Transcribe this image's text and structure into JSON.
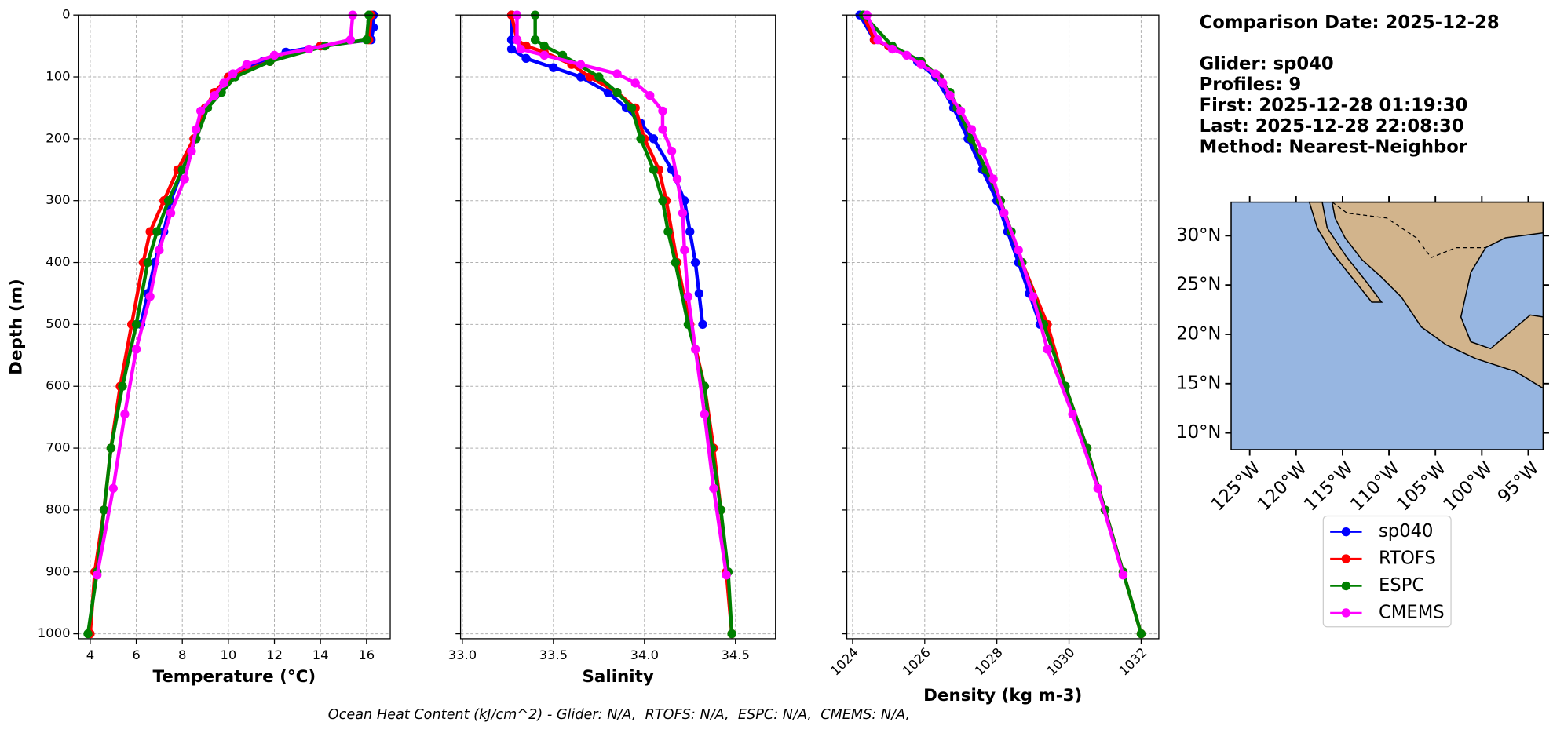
{
  "chart_data": [
    {
      "type": "line",
      "xlabel": "Temperature (°C)",
      "ylabel": "Depth (m)",
      "xlim": [
        3.48,
        17.03
      ],
      "xticks": [
        4,
        6,
        8,
        10,
        12,
        14,
        16
      ],
      "ylim": [
        1008,
        0
      ],
      "yticks": [
        0,
        100,
        200,
        300,
        400,
        500,
        600,
        700,
        800,
        900,
        1000
      ],
      "ytick_labels": true,
      "grid": true,
      "series": [
        {
          "name": "sp040",
          "color": "#0000ff",
          "depth": [
            0,
            20,
            40,
            50,
            60,
            75,
            100,
            125,
            150,
            200,
            250,
            300,
            350,
            400,
            450,
            500
          ],
          "values": [
            16.3,
            16.3,
            16.2,
            14,
            12.5,
            11.5,
            10,
            9.5,
            9,
            8.6,
            8,
            7.5,
            7.2,
            6.8,
            6.5,
            6.2
          ]
        },
        {
          "name": "RTOFS",
          "color": "#ff0000",
          "depth": [
            0,
            40,
            50,
            75,
            100,
            125,
            150,
            200,
            250,
            300,
            350,
            400,
            500,
            600,
            700,
            800,
            900,
            1000
          ],
          "values": [
            16.2,
            16.1,
            14,
            11.8,
            10,
            9.4,
            9,
            8.5,
            7.8,
            7.2,
            6.6,
            6.3,
            5.8,
            5.3,
            4.9,
            4.6,
            4.2,
            4
          ]
        },
        {
          "name": "ESPC",
          "color": "#008000",
          "depth": [
            0,
            40,
            50,
            75,
            100,
            125,
            150,
            200,
            250,
            300,
            350,
            400,
            500,
            600,
            700,
            800,
            900,
            1000
          ],
          "values": [
            16.1,
            16,
            14.2,
            11.8,
            10.3,
            9.7,
            9.1,
            8.6,
            8,
            7.4,
            6.9,
            6.5,
            6,
            5.4,
            4.9,
            4.6,
            4.3,
            3.9
          ]
        },
        {
          "name": "CMEMS",
          "color": "#ff00ff",
          "depth": [
            0,
            40,
            55,
            65,
            80,
            95,
            110,
            130,
            155,
            185,
            220,
            265,
            320,
            380,
            455,
            540,
            645,
            765,
            905
          ],
          "values": [
            15.4,
            15.3,
            13.5,
            12,
            10.8,
            10.2,
            9.8,
            9.4,
            8.8,
            8.6,
            8.4,
            8.1,
            7.5,
            7,
            6.6,
            6,
            5.5,
            5,
            4.3
          ]
        }
      ]
    },
    {
      "type": "line",
      "xlabel": "Salinity",
      "xlim": [
        32.99,
        34.72
      ],
      "xticks": [
        {
          "value": 33,
          "label": "33.0"
        },
        33.5,
        {
          "value": 34,
          "label": "34.0"
        },
        34.5
      ],
      "ylim": [
        1008,
        0
      ],
      "yticks": [
        0,
        100,
        200,
        300,
        400,
        500,
        600,
        700,
        800,
        900,
        1000
      ],
      "ytick_labels": false,
      "grid": true,
      "series": [
        {
          "name": "sp040",
          "color": "#0000ff",
          "depth": [
            0,
            40,
            55,
            70,
            85,
            100,
            125,
            150,
            175,
            200,
            250,
            300,
            350,
            400,
            450,
            500
          ],
          "values": [
            33.27,
            33.27,
            33.27,
            33.35,
            33.5,
            33.65,
            33.8,
            33.9,
            33.98,
            34.05,
            34.15,
            34.22,
            34.25,
            34.28,
            34.3,
            34.32
          ]
        },
        {
          "name": "RTOFS",
          "color": "#ff0000",
          "depth": [
            0,
            40,
            50,
            60,
            80,
            100,
            125,
            150,
            200,
            250,
            300,
            400,
            500,
            600,
            700,
            800,
            900,
            1000
          ],
          "values": [
            33.27,
            33.3,
            33.35,
            33.45,
            33.6,
            33.7,
            33.85,
            33.95,
            34,
            34.08,
            34.12,
            34.18,
            34.25,
            34.33,
            34.38,
            34.42,
            34.45,
            34.48
          ]
        },
        {
          "name": "ESPC",
          "color": "#008000",
          "depth": [
            0,
            40,
            50,
            65,
            100,
            125,
            150,
            200,
            250,
            300,
            350,
            400,
            500,
            600,
            700,
            800,
            900,
            1000
          ],
          "values": [
            33.4,
            33.4,
            33.45,
            33.55,
            33.75,
            33.85,
            33.93,
            33.98,
            34.05,
            34.1,
            34.13,
            34.17,
            34.24,
            34.33,
            34.37,
            34.42,
            34.46,
            34.48
          ]
        },
        {
          "name": "CMEMS",
          "color": "#ff00ff",
          "depth": [
            0,
            40,
            55,
            65,
            80,
            95,
            110,
            130,
            155,
            185,
            220,
            265,
            320,
            380,
            455,
            540,
            645,
            765,
            905
          ],
          "values": [
            33.3,
            33.3,
            33.32,
            33.45,
            33.65,
            33.85,
            33.95,
            34.03,
            34.1,
            34.1,
            34.15,
            34.18,
            34.21,
            34.22,
            34.24,
            34.28,
            34.33,
            34.38,
            34.45
          ]
        }
      ]
    },
    {
      "type": "line",
      "xlabel": "Density (kg m-3)",
      "xlim": [
        1023.84,
        1032.49
      ],
      "xticks": [
        1024,
        1026,
        1028,
        1030,
        1032
      ],
      "xtick_rotation": 45,
      "ylim": [
        1008,
        0
      ],
      "yticks": [
        0,
        100,
        200,
        300,
        400,
        500,
        600,
        700,
        800,
        900,
        1000
      ],
      "ytick_labels": false,
      "grid": true,
      "series": [
        {
          "name": "sp040",
          "color": "#0000ff",
          "depth": [
            0,
            40,
            50,
            75,
            100,
            150,
            200,
            250,
            300,
            350,
            400,
            450,
            500
          ],
          "values": [
            1024.2,
            1024.6,
            1025,
            1025.8,
            1026.3,
            1026.8,
            1027.2,
            1027.6,
            1028,
            1028.3,
            1028.6,
            1028.9,
            1029.2
          ]
        },
        {
          "name": "RTOFS",
          "color": "#ff0000",
          "depth": [
            0,
            40,
            50,
            75,
            100,
            150,
            200,
            250,
            300,
            400,
            500,
            600,
            700,
            800,
            900,
            1000
          ],
          "values": [
            1024.3,
            1024.6,
            1025,
            1025.9,
            1026.4,
            1026.9,
            1027.3,
            1027.7,
            1028.1,
            1028.7,
            1029.4,
            1029.9,
            1030.5,
            1031,
            1031.5,
            1032
          ]
        },
        {
          "name": "ESPC",
          "color": "#008000",
          "depth": [
            0,
            50,
            75,
            100,
            125,
            150,
            200,
            250,
            300,
            350,
            400,
            500,
            600,
            700,
            800,
            900,
            1000
          ],
          "values": [
            1024.3,
            1025.1,
            1025.9,
            1026.4,
            1026.7,
            1026.9,
            1027.3,
            1027.7,
            1028.1,
            1028.4,
            1028.7,
            1029.3,
            1029.9,
            1030.5,
            1031,
            1031.5,
            1032
          ]
        },
        {
          "name": "CMEMS",
          "color": "#ff00ff",
          "depth": [
            0,
            40,
            55,
            65,
            80,
            95,
            110,
            130,
            155,
            185,
            220,
            265,
            320,
            380,
            455,
            540,
            645,
            765,
            905
          ],
          "values": [
            1024.4,
            1024.7,
            1025.1,
            1025.5,
            1025.9,
            1026.3,
            1026.5,
            1026.7,
            1027,
            1027.3,
            1027.6,
            1027.9,
            1028.2,
            1028.6,
            1029,
            1029.4,
            1030.1,
            1030.8,
            1031.5
          ]
        }
      ]
    },
    {
      "type": "map",
      "xlim": [
        -127,
        -93.4
      ],
      "xticks": [
        {
          "value": -125,
          "label": "125°W"
        },
        {
          "value": -120,
          "label": "120°W"
        },
        {
          "value": -115,
          "label": "115°W"
        },
        {
          "value": -110,
          "label": "110°W"
        },
        {
          "value": -105,
          "label": "105°W"
        },
        {
          "value": -100,
          "label": "100°W"
        },
        {
          "value": -95,
          "label": "95°W"
        }
      ],
      "ylim": [
        8.3,
        33.4
      ],
      "yticks": [
        {
          "value": 10,
          "label": "10°N"
        },
        {
          "value": 15,
          "label": "15°N"
        },
        {
          "value": 20,
          "label": "20°N"
        },
        {
          "value": 25,
          "label": "25°N"
        },
        {
          "value": 30,
          "label": "30°N"
        }
      ]
    }
  ],
  "info": [
    "Comparison Date: 2025-12-28",
    "Glider: sp040",
    "Profiles: 9",
    "First: 2025-12-28 01:19:30",
    "Last: 2025-12-28 22:08:30",
    "Method: Nearest-Neighbor"
  ],
  "footer": "Ocean Heat Content (kJ/cm^2) - Glider: N/A,  RTOFS: N/A,  ESPC: N/A,  CMEMS: N/A,"
}
